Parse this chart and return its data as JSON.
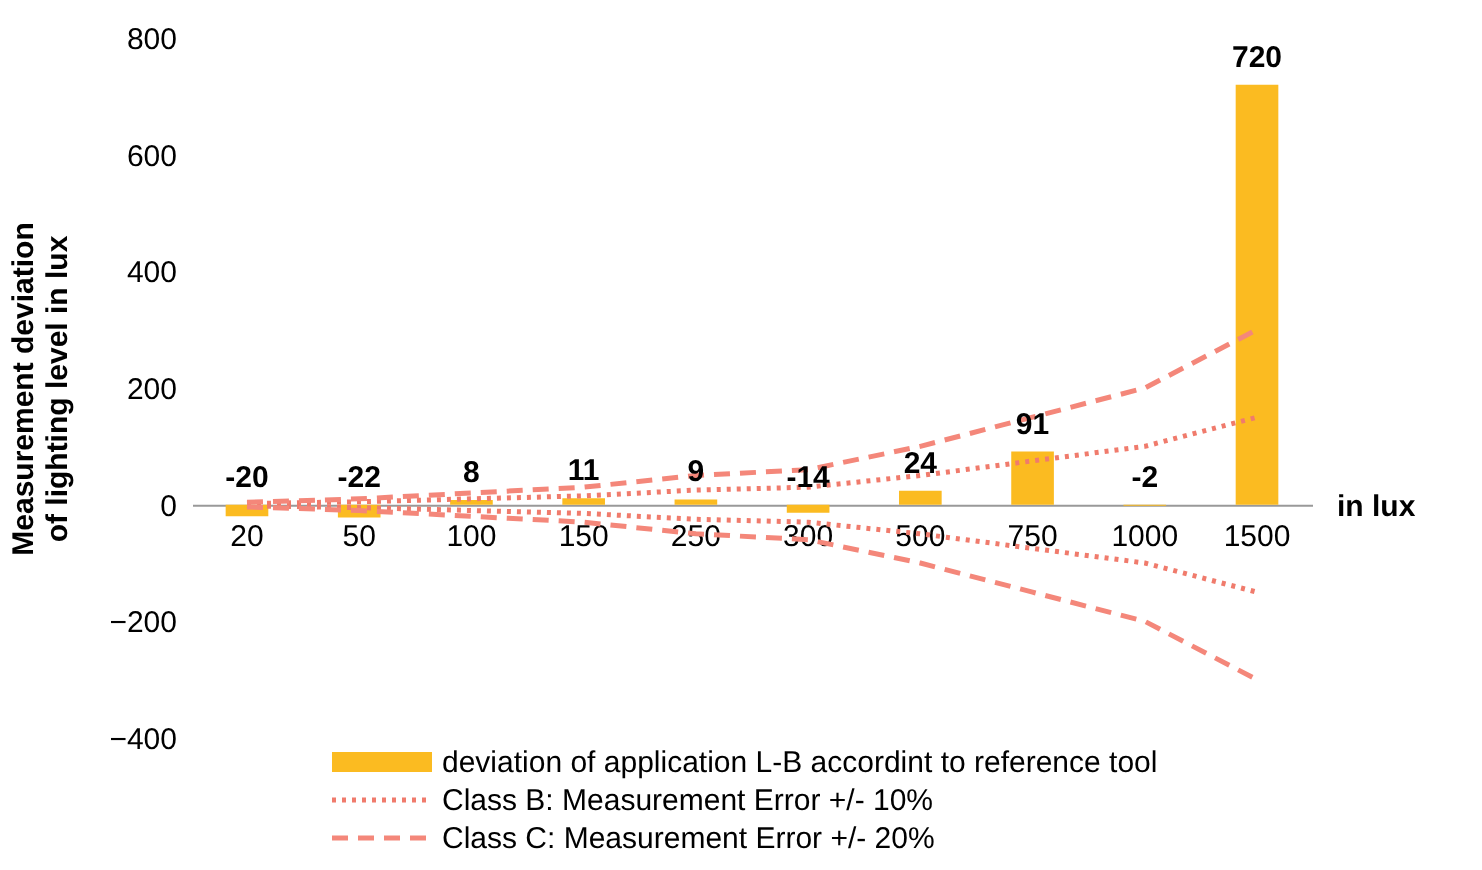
{
  "chart_data": {
    "type": "bar",
    "ylabel": "Measurement deviation of lighting level in lux",
    "xlabel": "in lux",
    "categories": [
      "20",
      "50",
      "100",
      "150",
      "250",
      "300",
      "500",
      "750",
      "1000",
      "1500"
    ],
    "ylim": [
      -400,
      800
    ],
    "yticks": [
      -400,
      -200,
      0,
      200,
      400,
      600,
      800
    ],
    "legend": "bottom",
    "marker": "none",
    "series": [
      {
        "name": "deviation of application L-B accordint to reference tool",
        "color": "#fbbb21",
        "values": [
          -20,
          -22,
          8,
          11,
          9,
          -14,
          24,
          91,
          -2,
          720
        ],
        "value_labels": [
          "-20",
          "-22",
          "8",
          "11",
          "9",
          "-14",
          "24",
          "91",
          "-2",
          "720"
        ]
      },
      {
        "name": "Class B: Measurement Error +/- 10%",
        "type": "line",
        "line_style": "dotted",
        "color": "#f07b6c",
        "values": [
          2,
          5,
          10,
          15,
          25,
          30,
          50,
          75,
          100,
          150
        ]
      },
      {
        "type": "line",
        "line_style": "dotted",
        "color": "#f07b6c",
        "values": [
          -2,
          -5,
          -10,
          -15,
          -25,
          -30,
          -50,
          -75,
          -100,
          -150
        ]
      },
      {
        "name": "Class C: Measurement Error +/- 20%",
        "type": "line",
        "line_style": "dashed",
        "color": "#f4877a",
        "values": [
          4,
          10,
          20,
          30,
          50,
          60,
          100,
          150,
          200,
          300
        ]
      },
      {
        "type": "line",
        "line_style": "dashed",
        "color": "#f4877a",
        "values": [
          -4,
          -10,
          -20,
          -30,
          -50,
          -60,
          -100,
          -150,
          -200,
          -300
        ]
      }
    ]
  }
}
